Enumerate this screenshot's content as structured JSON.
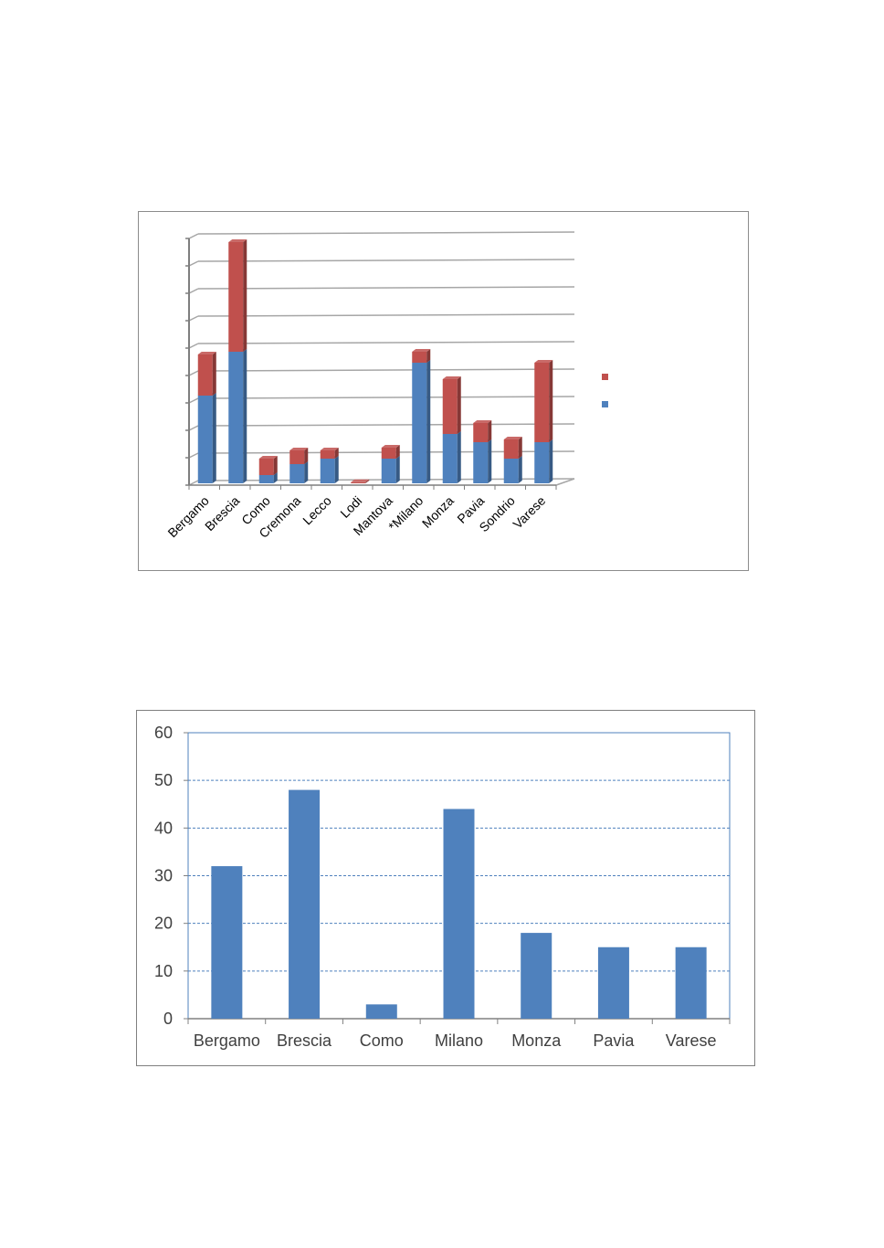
{
  "chart_data": [
    {
      "type": "bar",
      "stacked": true,
      "three_d": true,
      "categories": [
        "Bergamo",
        "Brescia",
        "Como",
        "Cremona",
        "Lecco",
        "Lodi",
        "Mantova",
        "*Milano",
        "Monza",
        "Pavia",
        "Sondrio",
        "Varese"
      ],
      "series": [
        {
          "color": "#4f81bd",
          "values": [
            32,
            48,
            3,
            7,
            9,
            0,
            9,
            44,
            18,
            15,
            9,
            15
          ]
        },
        {
          "color": "#c0504d",
          "values": [
            15,
            40,
            6,
            5,
            3,
            0.4,
            4,
            4,
            20,
            7,
            7,
            29
          ]
        }
      ],
      "legend": "right",
      "y_tick_labels_visible": false,
      "grid": true
    },
    {
      "type": "bar",
      "categories": [
        "Bergamo",
        "Brescia",
        "Como",
        "Milano",
        "Monza",
        "Pavia",
        "Varese"
      ],
      "values": [
        32,
        48,
        3,
        44,
        18,
        15,
        15
      ],
      "color": "#4f81bd",
      "ylim": [
        0,
        60
      ],
      "y_ticks": [
        "0",
        "10",
        "20",
        "30",
        "40",
        "50",
        "60"
      ],
      "grid": true
    }
  ]
}
